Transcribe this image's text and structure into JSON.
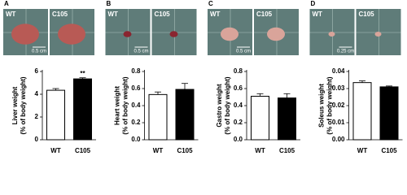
{
  "chart_data": [
    {
      "type": "bar",
      "panel": "A",
      "photo_labels": [
        "WT",
        "C105"
      ],
      "scale_bar": "0.5 cm",
      "ylabel": [
        "Liver weight",
        "(% of body weight)"
      ],
      "categories": [
        "WT",
        "C105"
      ],
      "values": [
        4.35,
        5.35
      ],
      "errors": [
        0.15,
        0.1
      ],
      "colors": [
        "#ffffff",
        "#000000"
      ],
      "annotation": "**",
      "ylim": [
        0,
        6
      ],
      "yticks": [
        0,
        2,
        4,
        6
      ]
    },
    {
      "type": "bar",
      "panel": "B",
      "photo_labels": [
        "WT",
        "C105"
      ],
      "scale_bar": "0.5 cm",
      "ylabel": [
        "Heart weight",
        "(% of body weight)"
      ],
      "categories": [
        "WT",
        "C105"
      ],
      "values": [
        0.53,
        0.59
      ],
      "errors": [
        0.03,
        0.07
      ],
      "colors": [
        "#ffffff",
        "#000000"
      ],
      "ylim": [
        0,
        0.8
      ],
      "yticks": [
        {
          "value": 0,
          "label": "0.0"
        },
        0.2,
        0.4,
        0.6,
        0.8
      ]
    },
    {
      "type": "bar",
      "panel": "C",
      "photo_labels": [
        "WT",
        "C105"
      ],
      "scale_bar": "0.5 cm",
      "ylabel": [
        "Gastro weight",
        "(% of body weight)"
      ],
      "categories": [
        "WT",
        "C105"
      ],
      "values": [
        0.51,
        0.49
      ],
      "errors": [
        0.03,
        0.05
      ],
      "colors": [
        "#ffffff",
        "#000000"
      ],
      "ylim": [
        0,
        0.8
      ],
      "yticks": [
        {
          "value": 0,
          "label": "0.0"
        },
        0.2,
        0.4,
        0.6,
        0.8
      ]
    },
    {
      "type": "bar",
      "panel": "D",
      "photo_labels": [
        "WT",
        "C105"
      ],
      "scale_bar": "0.25 cm",
      "ylabel": [
        "Soleus weight",
        "(% of body weight)"
      ],
      "categories": [
        "WT",
        "C105"
      ],
      "values": [
        0.0335,
        0.031
      ],
      "errors": [
        0.001,
        0.0005
      ],
      "colors": [
        "#ffffff",
        "#000000"
      ],
      "ylim": [
        0,
        0.04
      ],
      "yticks": [
        {
          "value": 0,
          "label": "0.00"
        },
        0.01,
        0.02,
        0.03,
        {
          "value": 0.04,
          "label": "0.04"
        }
      ]
    }
  ]
}
